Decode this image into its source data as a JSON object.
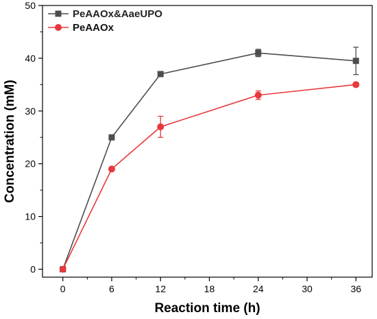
{
  "chart_data": {
    "type": "line",
    "title": "",
    "xlabel": "Reaction time (h)",
    "ylabel": "Concentration (mM)",
    "xlim": [
      -2.5,
      38
    ],
    "ylim": [
      -1.5,
      50
    ],
    "x_ticks": [
      0,
      6,
      12,
      18,
      24,
      30,
      36
    ],
    "y_ticks": [
      0,
      10,
      20,
      30,
      40,
      50
    ],
    "x_tick_labels": [
      "0",
      "6",
      "12",
      "18",
      "24",
      "30",
      "36"
    ],
    "y_tick_labels": [
      "0",
      "10",
      "20",
      "30",
      "40",
      "50"
    ],
    "grid": false,
    "legend_position": "top-left",
    "series": [
      {
        "name": "PeAAOx&AaeUPO",
        "color": "#4d4d4d",
        "marker": "square",
        "x": [
          0,
          6,
          12,
          24,
          36
        ],
        "y": [
          0,
          25,
          37,
          41,
          39.5
        ],
        "error": [
          0,
          0,
          0,
          0.7,
          2.6
        ]
      },
      {
        "name": "PeAAOx",
        "color": "#e8383d",
        "marker": "circle",
        "x": [
          0,
          6,
          12,
          24,
          36
        ],
        "y": [
          0,
          19,
          27,
          33,
          35
        ],
        "error": [
          0,
          0,
          2,
          0.8,
          0.4
        ]
      }
    ]
  }
}
